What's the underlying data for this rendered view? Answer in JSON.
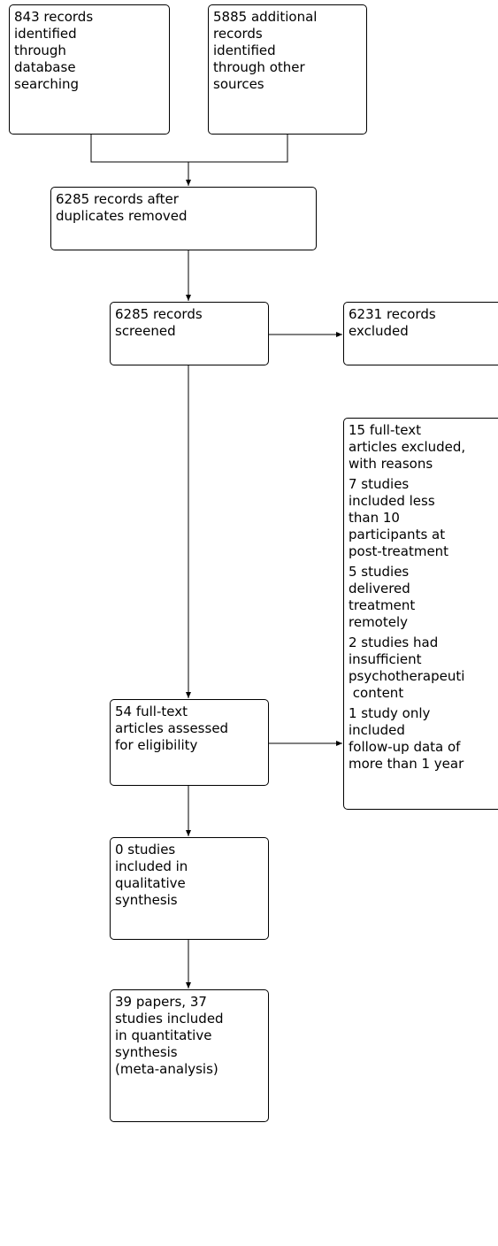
{
  "nodes": [
    {
      "lines": [
        "843 records",
        "identified",
        "through",
        "database",
        "searching"
      ]
    },
    {
      "lines": [
        "5885 additional",
        "records",
        "identified",
        "through other",
        "sources"
      ]
    },
    {
      "lines": [
        "6285 records after",
        "duplicates removed"
      ]
    },
    {
      "lines": [
        "6285 records",
        "screened"
      ]
    },
    {
      "lines": [
        "6231 records",
        "excluded"
      ]
    },
    {
      "paragraphs": [
        [
          "15 full-text",
          "articles excluded,",
          "with reasons"
        ],
        [
          "7 studies",
          "included less",
          "than 10",
          "participants at",
          "post-treatment"
        ],
        [
          "5 studies",
          "delivered",
          "treatment",
          "remotely"
        ],
        [
          "2 studies had",
          "insufficient",
          "psychotherapeuti",
          " content"
        ],
        [
          "1 study only",
          "included",
          "follow-up data of",
          "more than 1 year"
        ]
      ]
    },
    {
      "lines": [
        "54 full-text",
        "articles assessed",
        "for eligibility"
      ]
    },
    {
      "lines": [
        "0 studies",
        "included in",
        "qualitative",
        "synthesis"
      ]
    },
    {
      "lines": [
        "39 papers, 37",
        "studies included",
        "in quantitative",
        "synthesis",
        "(meta-analysis)"
      ]
    }
  ]
}
